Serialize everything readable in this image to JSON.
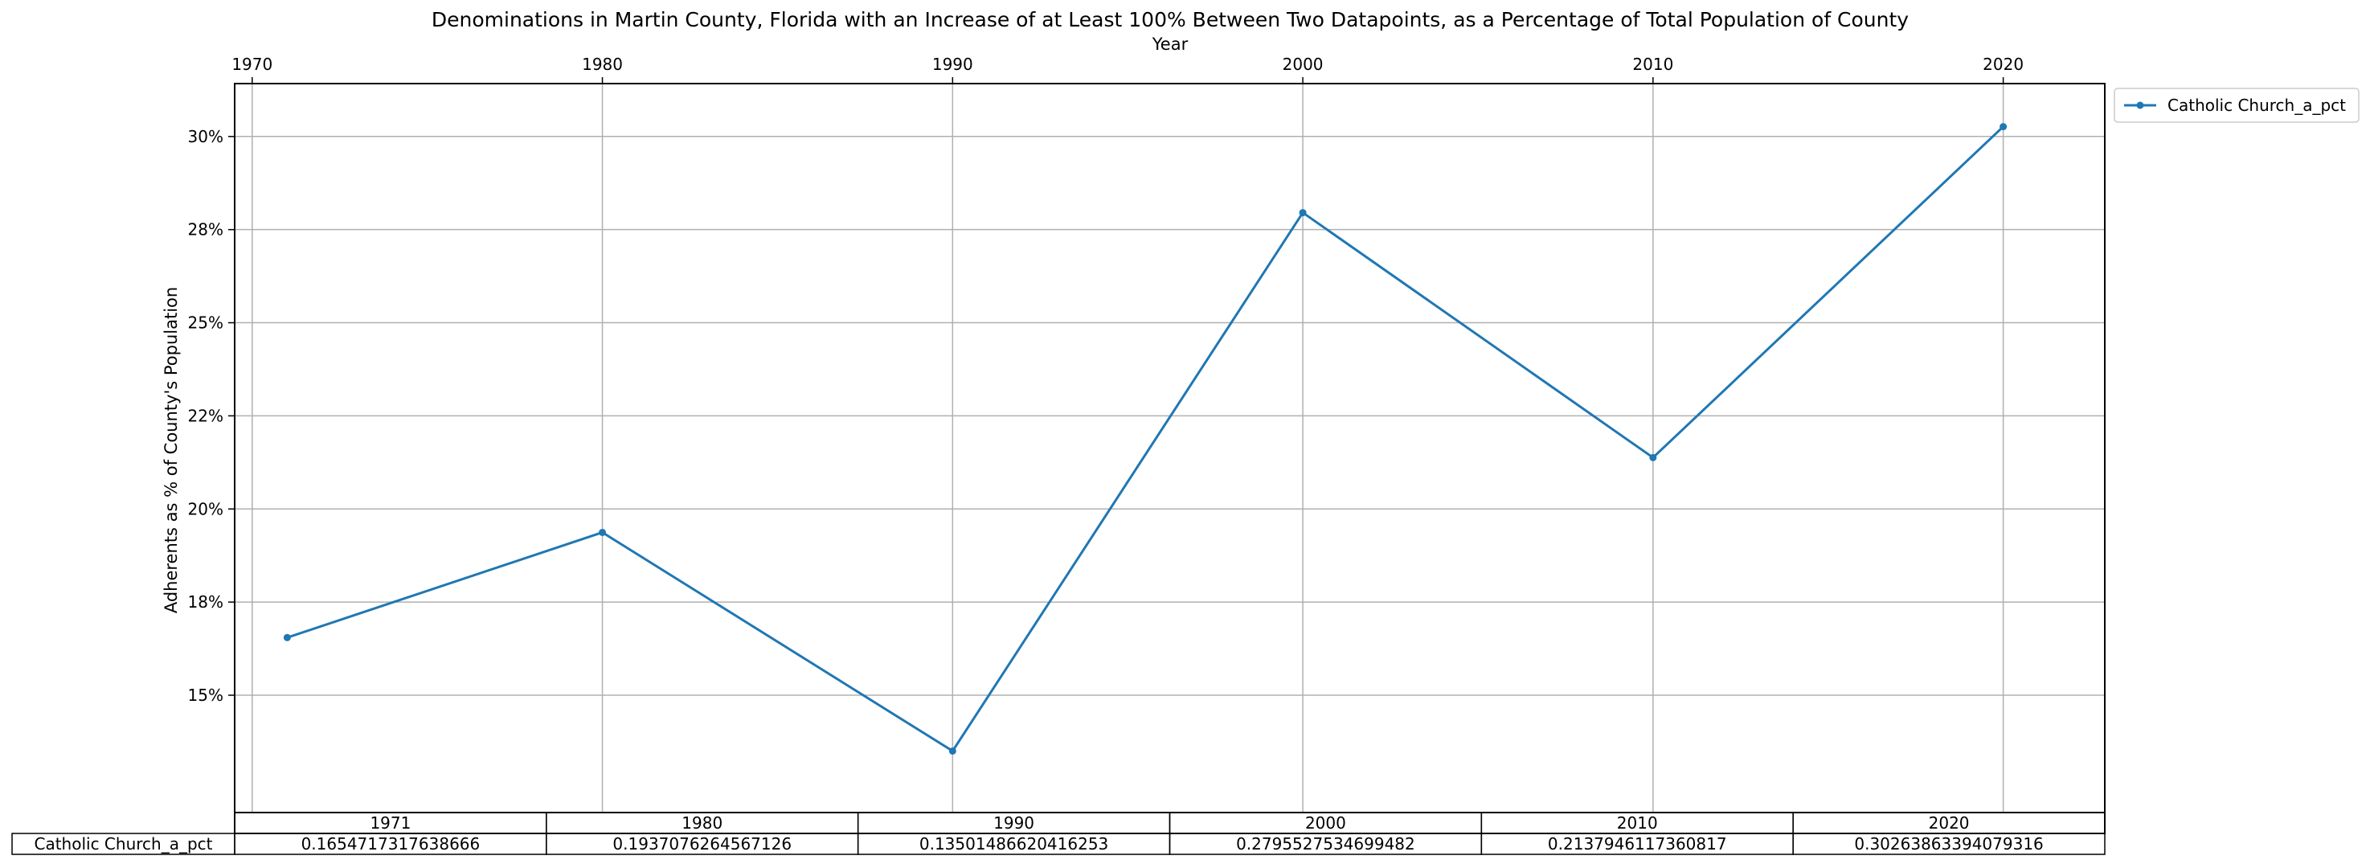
{
  "chart_data": {
    "type": "line",
    "title": "Denominations in Martin County, Florida with an Increase of at Least 100% Between Two Datapoints, as a Percentage of Total Population of County",
    "xlabel": "Year",
    "ylabel": "Adherents as % of County's Population",
    "x": [
      1971,
      1980,
      1990,
      2000,
      2010,
      2020
    ],
    "xlim": [
      1969.5,
      2022.9
    ],
    "ylim": [
      0.1185,
      0.3142
    ],
    "xticks": [
      1970,
      1980,
      1990,
      2000,
      2010,
      2020
    ],
    "yticks": [
      {
        "value": 0.15,
        "label": "15%"
      },
      {
        "value": 0.175,
        "label": "18%"
      },
      {
        "value": 0.2,
        "label": "20%"
      },
      {
        "value": 0.225,
        "label": "22%"
      },
      {
        "value": 0.25,
        "label": "25%"
      },
      {
        "value": 0.275,
        "label": "28%"
      },
      {
        "value": 0.3,
        "label": "30%"
      }
    ],
    "grid": true,
    "legend_position": "outside-top-right",
    "series": [
      {
        "name": "Catholic Church_a_pct",
        "color": "#1f77b4",
        "values": [
          0.1654717317638666,
          0.1937076264567126,
          0.13501486620416253,
          0.2795527534699482,
          0.2137946117360817,
          0.30263863394079316
        ]
      }
    ],
    "table": {
      "col_labels": [
        "1971",
        "1980",
        "1990",
        "2000",
        "2010",
        "2020"
      ],
      "rows": [
        {
          "label": "Catholic Church_a_pct",
          "cells": [
            "0.1654717317638666",
            "0.1937076264567126",
            "0.13501486620416253",
            "0.2795527534699482",
            "0.2137946117360817",
            "0.30263863394079316"
          ]
        }
      ]
    }
  }
}
